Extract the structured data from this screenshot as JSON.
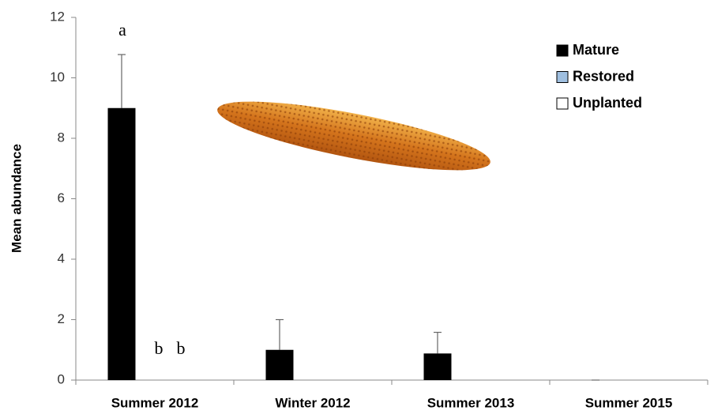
{
  "chart_data": {
    "type": "bar",
    "y_label": "Mean abundance",
    "categories": [
      "Summer 2012",
      "Winter 2012",
      "Summer 2013",
      "Summer 2015"
    ],
    "series": [
      {
        "name": "Mature",
        "color": "#000000",
        "values": [
          9,
          1,
          0.88,
          0
        ],
        "errors": [
          1.77,
          1.0,
          0.7,
          0
        ]
      },
      {
        "name": "Restored",
        "color": "#9fbfe0",
        "values": [
          0,
          0,
          0,
          0
        ]
      },
      {
        "name": "Unplanted",
        "color": "#ffffff",
        "values": [
          0,
          0,
          0,
          0
        ]
      }
    ],
    "annotations": [
      "a",
      "b",
      "b"
    ],
    "ylim": [
      0,
      12
    ],
    "yticks": [
      0,
      2,
      4,
      6,
      8,
      10,
      12
    ],
    "grid": false,
    "legend": "top-right"
  }
}
